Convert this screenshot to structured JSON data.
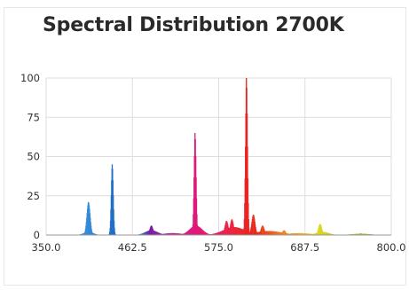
{
  "chart_data": {
    "type": "area",
    "title": "Spectral Distribution 2700K",
    "xlabel": "",
    "ylabel": "",
    "xlim": [
      350.0,
      800.0
    ],
    "ylim": [
      0,
      100
    ],
    "x_ticks": [
      "350.0",
      "462.5",
      "575.0",
      "687.5",
      "800.0"
    ],
    "x_tick_values": [
      350.0,
      462.5,
      575.0,
      687.5,
      800.0
    ],
    "y_ticks": [
      "0",
      "25",
      "50",
      "75",
      "100"
    ],
    "y_tick_values": [
      0,
      25,
      50,
      75,
      100
    ],
    "grid": true,
    "legend": "none",
    "peaks": [
      {
        "x": 405,
        "y": 21,
        "color": "#2b8fd6"
      },
      {
        "x": 436,
        "y": 45,
        "color": "#1f6fc4"
      },
      {
        "x": 487,
        "y": 6,
        "color": "#7a1fa2"
      },
      {
        "x": 544,
        "y": 65,
        "color": "#e0187a"
      },
      {
        "x": 585,
        "y": 9,
        "color": "#ef2a4a"
      },
      {
        "x": 592,
        "y": 10,
        "color": "#ef2a4a"
      },
      {
        "x": 611,
        "y": 100,
        "color": "#e52315"
      },
      {
        "x": 620,
        "y": 13,
        "color": "#ea3a1e"
      },
      {
        "x": 632,
        "y": 6,
        "color": "#f0581f"
      },
      {
        "x": 660,
        "y": 3,
        "color": "#f28a26"
      },
      {
        "x": 707,
        "y": 7,
        "color": "#d9d61e"
      },
      {
        "x": 760,
        "y": 1,
        "color": "#9aa81e"
      }
    ],
    "colors": {
      "blue": "#2b8fd6",
      "violet": "#7a1fa2",
      "magenta": "#e0187a",
      "red": "#e52315",
      "orange": "#f28a26",
      "yellow": "#d9d61e"
    }
  }
}
